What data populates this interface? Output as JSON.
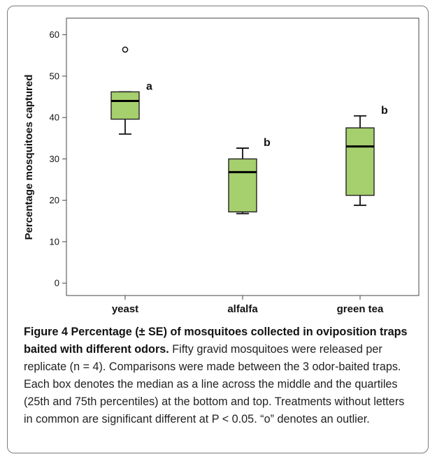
{
  "chart_data": {
    "type": "box",
    "categories": [
      "yeast",
      "alfalfa",
      "green tea"
    ],
    "ylabel": "Percentage mosquitoes captured",
    "ylim": [
      -3,
      64
    ],
    "yticks": [
      0,
      10,
      20,
      30,
      40,
      50,
      60
    ],
    "box_color": "#a6cf6e",
    "boxes": [
      {
        "category": "yeast",
        "whisker_low": 36,
        "q1": 39.6,
        "median": 44,
        "q3": 46.2,
        "whisker_high": 46.2,
        "outliers": [
          56.4
        ],
        "letter": "a"
      },
      {
        "category": "alfalfa",
        "whisker_low": 16.8,
        "q1": 17.2,
        "median": 26.8,
        "q3": 30,
        "whisker_high": 32.6,
        "outliers": [],
        "letter": "b"
      },
      {
        "category": "green tea",
        "whisker_low": 18.8,
        "q1": 21.2,
        "median": 33,
        "q3": 37.5,
        "whisker_high": 40.4,
        "outliers": [],
        "letter": "b"
      }
    ]
  },
  "caption": {
    "title": "Figure 4 Percentage (± SE) of mosquitoes collected in oviposition traps baited with different odors.",
    "body": " Fifty gravid mosquitoes were released per replicate (n = 4). Comparisons were made between the 3 odor-baited traps. Each box denotes the median as a line across the middle and the quartiles (25th and 75th percentiles) at the bottom and top. Treatments without letters in common are significant different at P < 0.05. “o” denotes an outlier."
  }
}
